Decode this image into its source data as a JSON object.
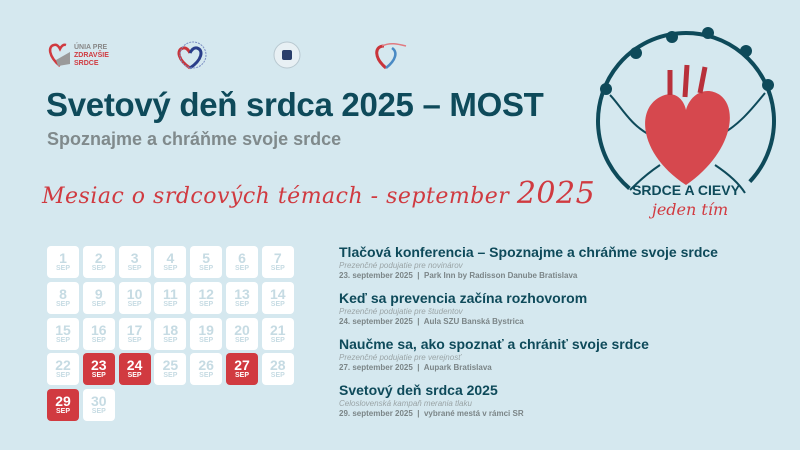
{
  "logos": {
    "unia_line1": "ÚNIA PRE",
    "unia_line2": "ZDRAVŠIE",
    "unia_line3": "SRDCE"
  },
  "header": {
    "title": "Svetový deň srdca 2025 – MOST",
    "subtitle": "Spoznajme a chráňme svoje srdce"
  },
  "banner": {
    "text": "Mesiac o srdcových témach - september",
    "year": "2025"
  },
  "badge": {
    "line1": "SRDCE A CIEVY",
    "line2": "jeden tím"
  },
  "calendar": {
    "month": "SEP",
    "days": [
      1,
      2,
      3,
      4,
      5,
      6,
      7,
      8,
      9,
      10,
      11,
      12,
      13,
      14,
      15,
      16,
      17,
      18,
      19,
      20,
      21,
      22,
      23,
      24,
      25,
      26,
      27,
      28,
      29,
      30
    ],
    "highlighted": [
      23,
      24,
      27,
      29
    ],
    "highlight_color": "#d13a40"
  },
  "events": [
    {
      "title": "Tlačová konferencia – Spoznajme a chráňme svoje srdce",
      "subtitle": "Prezenčné podujatie pre novinárov",
      "date": "23. september 2025",
      "place": "Park Inn by Radisson Danube Bratislava"
    },
    {
      "title": "Keď sa prevencia začína rozhovorom",
      "subtitle": "Prezenčné podujatie pre študentov",
      "date": "24. september 2025",
      "place": "Aula SZU Banská Bystrica"
    },
    {
      "title": "Naučme sa, ako spoznať a chrániť svoje srdce",
      "subtitle": "Prezenčné podujatie pre verejnosť",
      "date": "27. september 2025",
      "place": "Aupark Bratislava"
    },
    {
      "title": "Svetový deň srdca 2025",
      "subtitle": "Celoslovenská kampaň merania tlaku",
      "date": "29. september 2025",
      "place": "vybrané mestá v rámci SR"
    }
  ],
  "separator": "|",
  "colors": {
    "title": "#0e4a5a",
    "accent": "#d13a40",
    "background": "#d5e8ef"
  }
}
